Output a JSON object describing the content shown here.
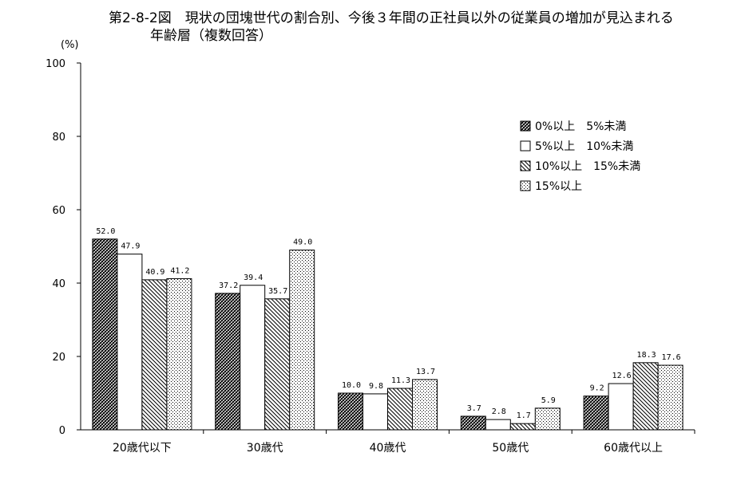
{
  "title_line1": "第2-8-2図　現状の団塊世代の割合別、今後３年間の正社員以外の従業員の増加が見込まれる",
  "title_line2": "年齢層（複数回答）",
  "chart_data": {
    "type": "bar",
    "ylabel": "(%)",
    "ylim": [
      0,
      100
    ],
    "yticks": [
      0,
      20,
      40,
      60,
      80,
      100
    ],
    "grid": false,
    "legend_position": "top-right",
    "categories": [
      "20歳代以下",
      "30歳代",
      "40歳代",
      "50歳代",
      "60歳代以上"
    ],
    "series": [
      {
        "name": "0%以上　5%未満",
        "values": [
          52.0,
          37.2,
          10.0,
          3.7,
          9.2
        ],
        "value_labels": [
          "52.0",
          "37.2",
          "10.0",
          "3.7",
          "9.2"
        ]
      },
      {
        "name": "5%以上　10%未満",
        "values": [
          47.9,
          39.4,
          9.8,
          2.8,
          12.6
        ],
        "value_labels": [
          "47.9",
          "39.4",
          "9.8",
          "2.8",
          "12.6"
        ]
      },
      {
        "name": "10%以上　15%未満",
        "values": [
          40.9,
          35.7,
          11.3,
          1.7,
          18.3
        ],
        "value_labels": [
          "40.9",
          "35.7",
          "11.3",
          "1.7",
          "18.3"
        ]
      },
      {
        "name": "15%以上",
        "values": [
          41.2,
          49.0,
          13.7,
          5.9,
          17.6
        ],
        "value_labels": [
          "41.2",
          "49.0",
          "13.7",
          "5.9",
          "17.6"
        ]
      }
    ]
  }
}
